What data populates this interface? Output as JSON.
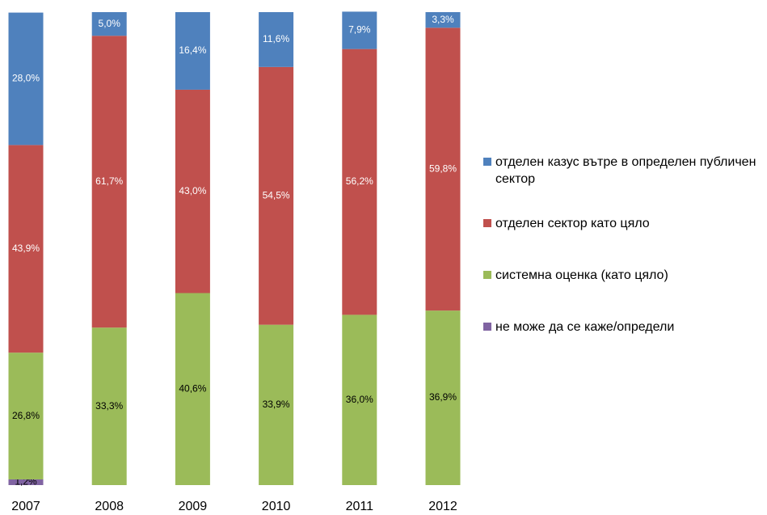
{
  "chart_data": {
    "type": "stacked-bar",
    "categories": [
      "2007",
      "2008",
      "2009",
      "2010",
      "2011",
      "2012"
    ],
    "ylim": [
      0,
      100
    ],
    "series": [
      {
        "name": "не може да се каже/определи",
        "color": "#8064a2",
        "values": [
          1.2,
          null,
          null,
          null,
          null,
          null
        ],
        "value_labels": [
          "1,2%",
          null,
          null,
          null,
          null,
          null
        ]
      },
      {
        "name": "системна оценка (като цяло)",
        "color": "#9bbb59",
        "values": [
          26.8,
          33.3,
          40.6,
          33.9,
          36.0,
          36.9
        ],
        "value_labels": [
          "26,8%",
          "33,3%",
          "40,6%",
          "33,9%",
          "36,0%",
          "36,9%"
        ]
      },
      {
        "name": "отделен сектор като цяло",
        "color": "#c0504d",
        "values": [
          43.9,
          61.7,
          43.0,
          54.5,
          56.2,
          59.8
        ],
        "value_labels": [
          "43,9%",
          "61,7%",
          "43,0%",
          "54,5%",
          "56,2%",
          "59,8%"
        ]
      },
      {
        "name": "отделен казус вътре в определен публичен сектор",
        "color": "#4f81bd",
        "values": [
          28.0,
          5.0,
          16.4,
          11.6,
          7.9,
          3.3
        ],
        "value_labels": [
          "28,0%",
          "5,0%",
          "16,4%",
          "11,6%",
          "7,9%",
          "3,3%"
        ]
      }
    ]
  }
}
